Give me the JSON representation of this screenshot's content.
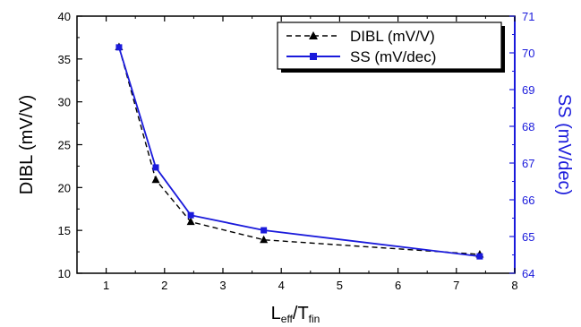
{
  "chart_data": {
    "type": "line",
    "x": [
      1.22,
      1.85,
      2.45,
      3.7,
      7.4
    ],
    "xlim": [
      0.5,
      8
    ],
    "x_ticks": [
      "1",
      "2",
      "3",
      "4",
      "5",
      "6",
      "7",
      "8"
    ],
    "xlabel": {
      "main": "L",
      "sub1": "eff",
      "slash": "/T",
      "sub2": "fin"
    },
    "left_axis": {
      "label": "DIBL (mV/V)",
      "ylim": [
        10,
        40
      ],
      "ticks": [
        "10",
        "15",
        "20",
        "25",
        "30",
        "35",
        "40"
      ],
      "color": "#000000"
    },
    "right_axis": {
      "label": "SS (mV/dec)",
      "ylim": [
        64,
        71
      ],
      "ticks": [
        "64",
        "65",
        "66",
        "67",
        "68",
        "69",
        "70",
        "71"
      ],
      "color": "#1a1adb"
    },
    "series": [
      {
        "name": "DIBL (mV/V)",
        "axis": "left",
        "values": [
          36.4,
          20.9,
          16.0,
          13.9,
          12.2
        ],
        "color": "#000000",
        "marker": "triangle",
        "line": "dashed"
      },
      {
        "name": "SS (mV/dec)",
        "axis": "right",
        "values": [
          70.15,
          66.88,
          65.58,
          65.17,
          64.46
        ],
        "color": "#1a1adb",
        "marker": "square",
        "line": "solid"
      }
    ],
    "legend": {
      "position": "top-right"
    },
    "grid": false
  }
}
